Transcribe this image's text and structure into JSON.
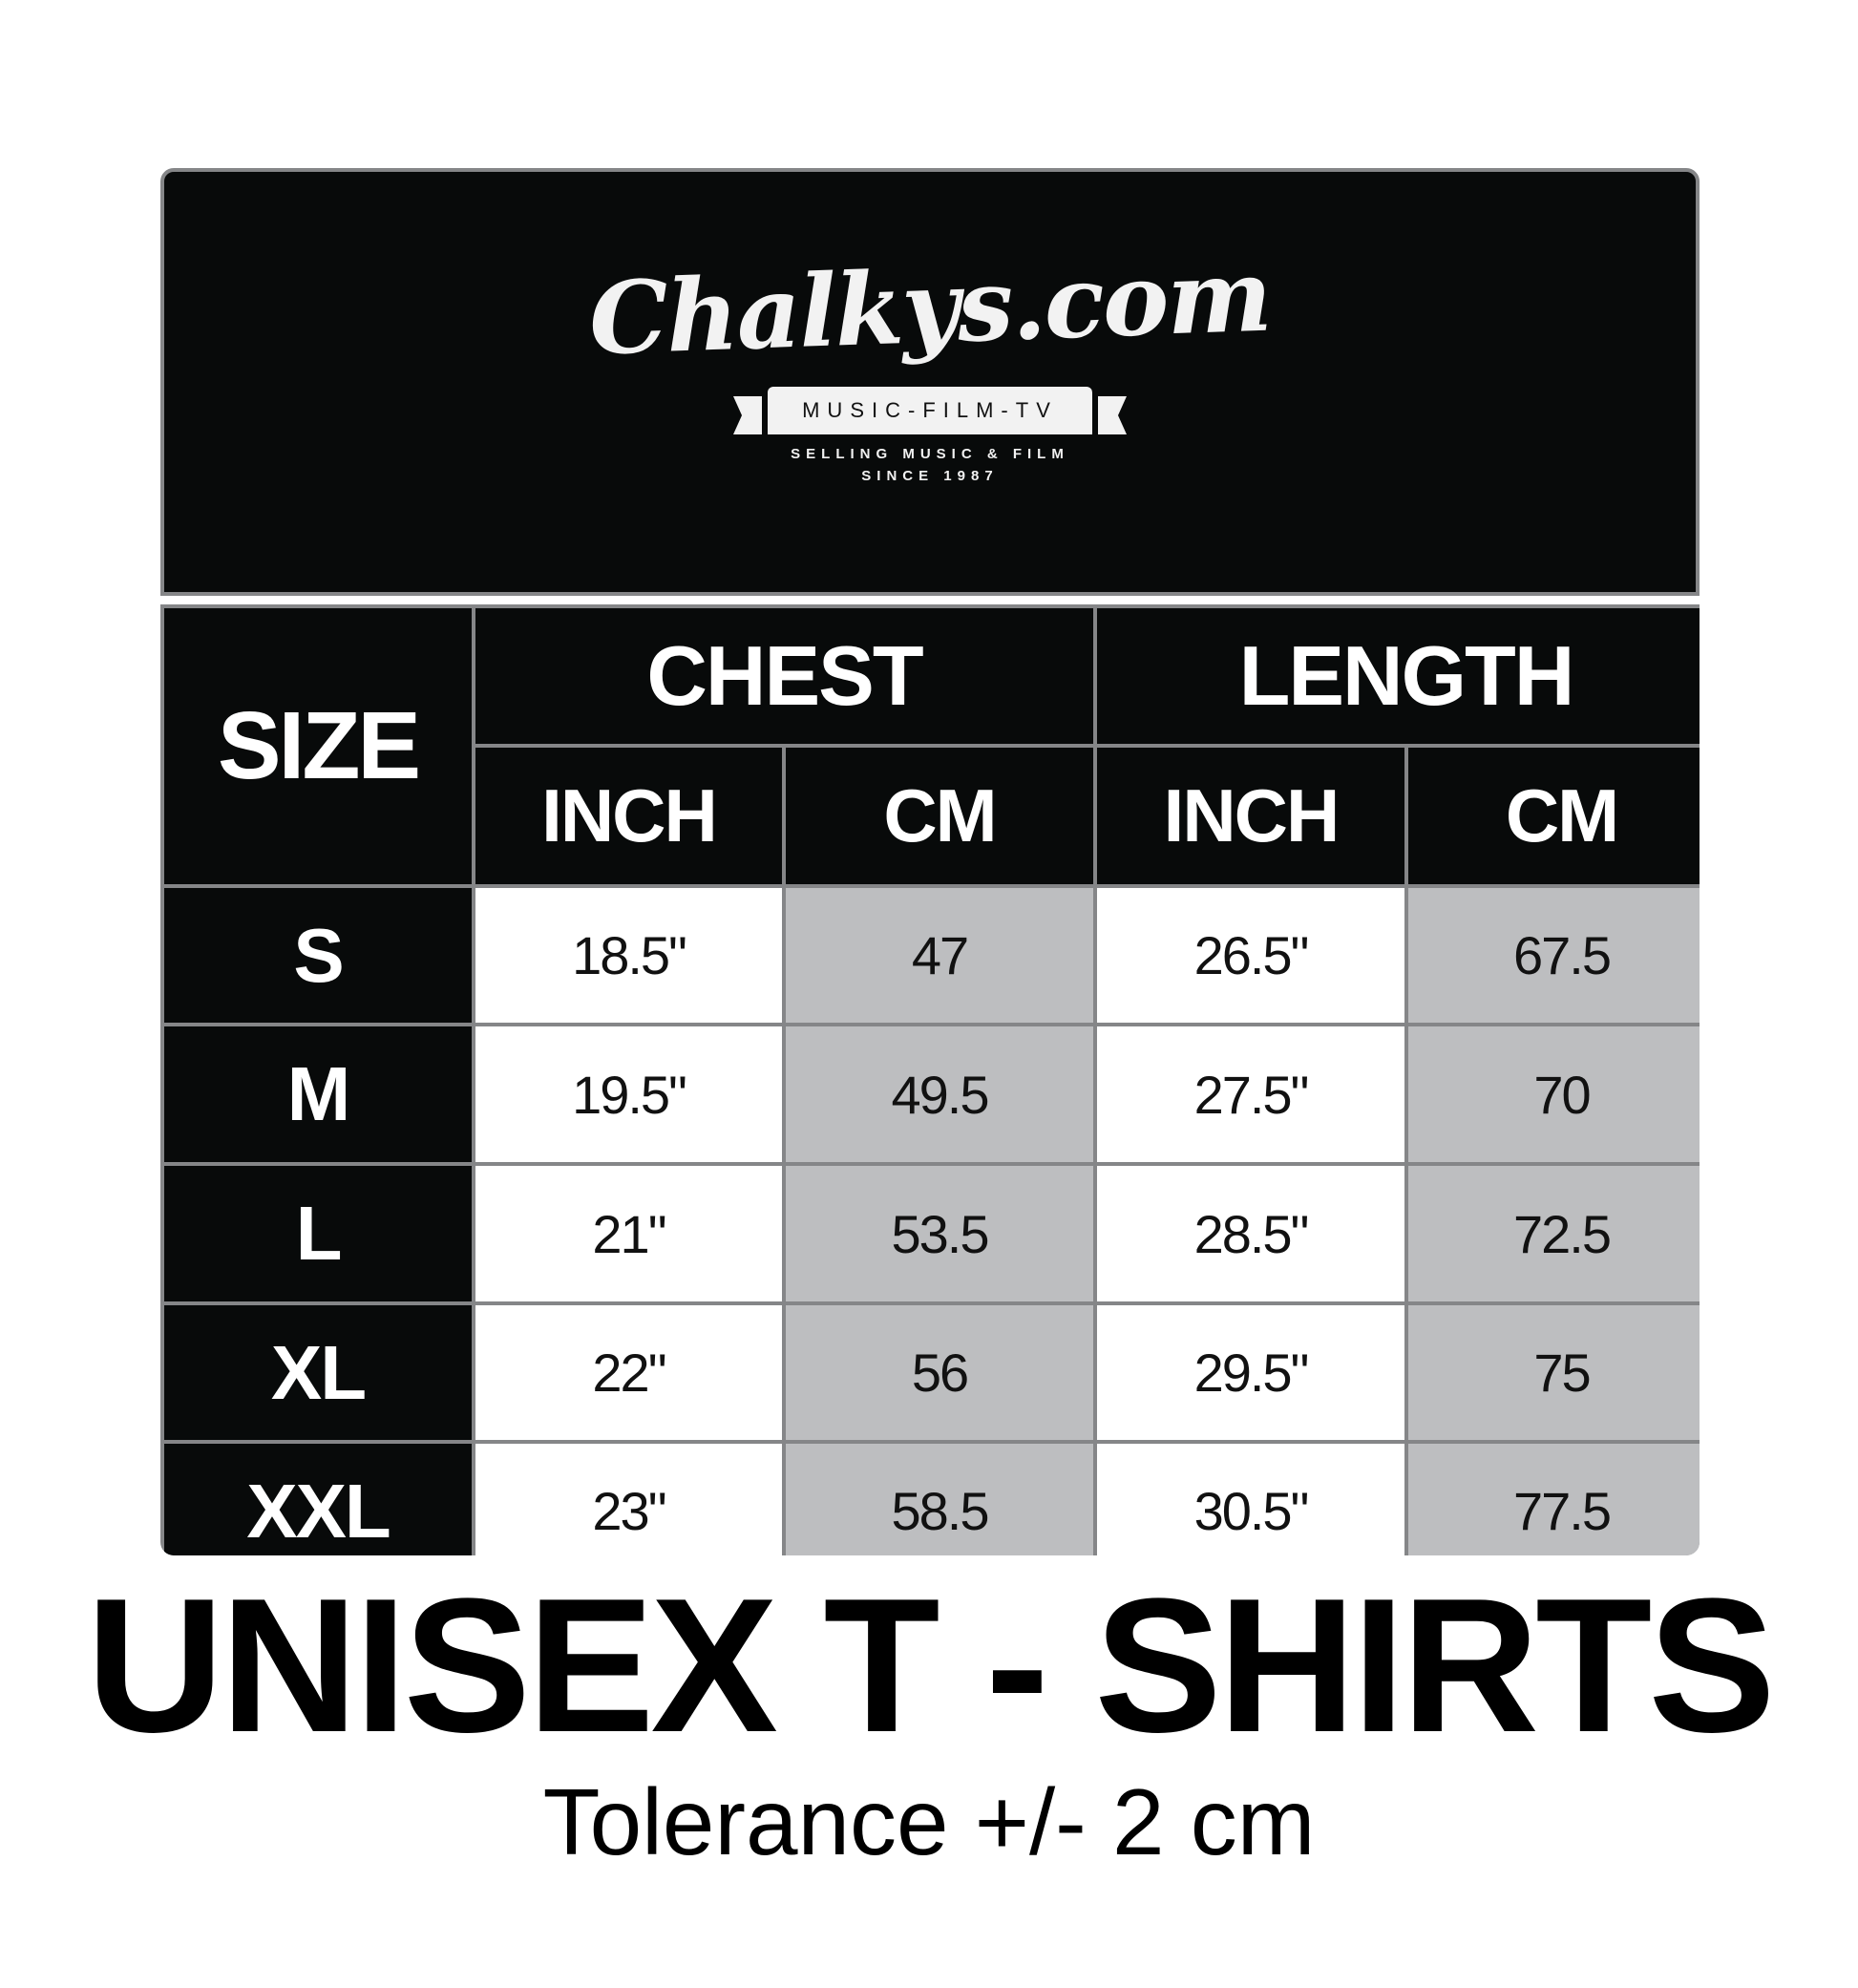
{
  "logo": {
    "name": "Chalkys.com",
    "banner": "MUSIC-FILM-TV",
    "tagline": "SELLING MUSIC & FILM",
    "since": "SINCE 1987"
  },
  "table": {
    "size_header": "SIZE",
    "groups": [
      "CHEST",
      "LENGTH"
    ],
    "units": [
      "INCH",
      "CM",
      "INCH",
      "CM"
    ],
    "rows": [
      {
        "size": "S",
        "chest_in": "18.5\"",
        "chest_cm": "47",
        "length_in": "26.5\"",
        "length_cm": "67.5"
      },
      {
        "size": "M",
        "chest_in": "19.5\"",
        "chest_cm": "49.5",
        "length_in": "27.5\"",
        "length_cm": "70"
      },
      {
        "size": "L",
        "chest_in": "21\"",
        "chest_cm": "53.5",
        "length_in": "28.5\"",
        "length_cm": "72.5"
      },
      {
        "size": "XL",
        "chest_in": "22\"",
        "chest_cm": "56",
        "length_in": "29.5\"",
        "length_cm": "75"
      },
      {
        "size": "XXL",
        "chest_in": "23\"",
        "chest_cm": "58.5",
        "length_in": "30.5\"",
        "length_cm": "77.5"
      }
    ]
  },
  "title": "UNISEX T - SHIRTS",
  "tolerance": "Tolerance +/- 2 cm",
  "colors": {
    "header_bg": "#080a0a",
    "border": "#858688",
    "cm_cell": "#bdbec0",
    "inch_cell": "#ffffff"
  }
}
